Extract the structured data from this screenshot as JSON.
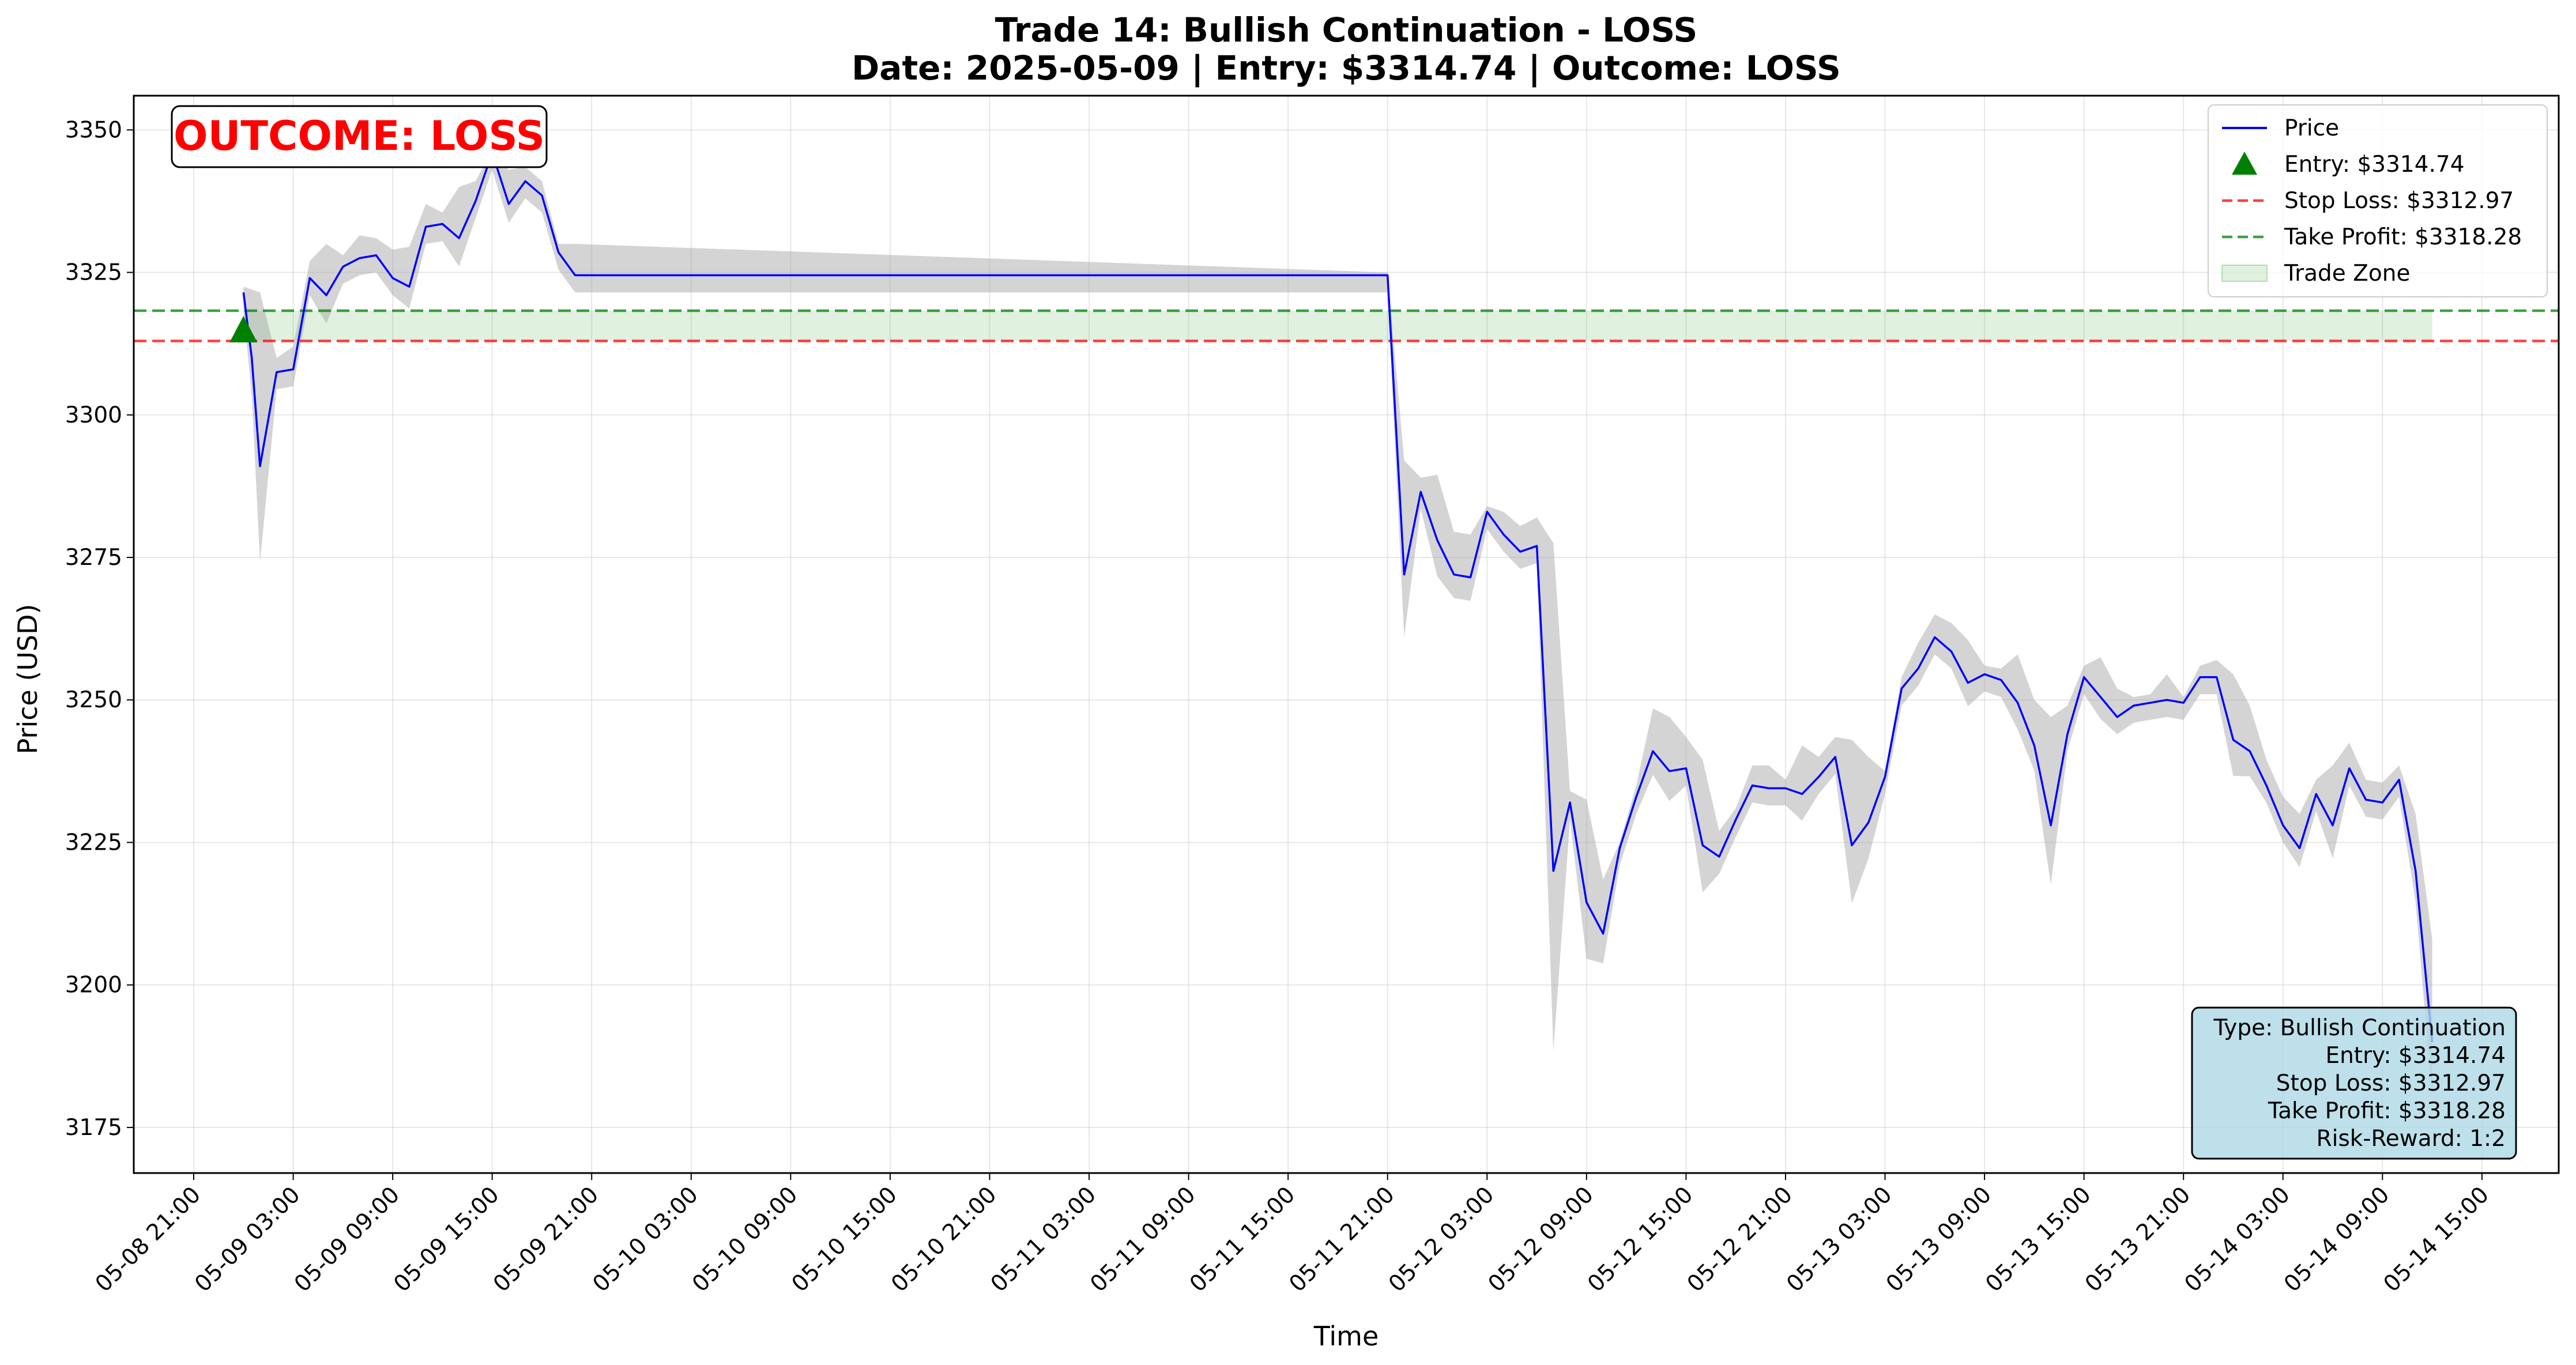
{
  "chart_data": {
    "type": "line",
    "title": "Trade 14: Bullish Continuation - LOSS",
    "subtitle": "Date: 2025-05-09 | Entry: $3314.74 | Outcome: LOSS",
    "xlabel": "Time",
    "ylabel": "Price (USD)",
    "ylim": [
      3167,
      3356
    ],
    "x_tick_labels": [
      "05-08 21:00",
      "05-09 03:00",
      "05-09 09:00",
      "05-09 15:00",
      "05-09 21:00",
      "05-10 03:00",
      "05-10 09:00",
      "05-10 15:00",
      "05-10 21:00",
      "05-11 03:00",
      "05-11 09:00",
      "05-11 15:00",
      "05-11 21:00",
      "05-12 03:00",
      "05-12 09:00",
      "05-12 15:00",
      "05-12 21:00",
      "05-13 03:00",
      "05-13 09:00",
      "05-13 15:00",
      "05-13 21:00",
      "05-14 03:00",
      "05-14 09:00",
      "05-14 15:00"
    ],
    "y_tick_labels": [
      "3175",
      "3200",
      "3225",
      "3250",
      "3275",
      "3300",
      "3325",
      "3350"
    ],
    "y_ticks": [
      3175,
      3200,
      3225,
      3250,
      3275,
      3300,
      3325,
      3350
    ],
    "grid": true,
    "legend_position": "top-right",
    "colors": {
      "price": "#0000ff",
      "entry": "#008000",
      "stop_loss": "#ff0000",
      "take_profit": "#008000",
      "trade_zone": "#2ca02c",
      "band": "#a0a0a0",
      "outcome": "#ff0000",
      "info_box": "#add8e6"
    },
    "series": [
      {
        "name": "Price",
        "x": [
          "05-09 00:00",
          "05-09 00:30",
          "05-09 01:00",
          "05-09 02:00",
          "05-09 03:00",
          "05-09 04:00",
          "05-09 05:00",
          "05-09 06:00",
          "05-09 07:00",
          "05-09 08:00",
          "05-09 09:00",
          "05-09 10:00",
          "05-09 11:00",
          "05-09 12:00",
          "05-09 13:00",
          "05-09 14:00",
          "05-09 15:00",
          "05-09 16:00",
          "05-09 17:00",
          "05-09 18:00",
          "05-09 19:00",
          "05-09 20:00",
          "05-11 21:00",
          "05-11 22:00",
          "05-11 23:00",
          "05-12 00:00",
          "05-12 01:00",
          "05-12 02:00",
          "05-12 03:00",
          "05-12 04:00",
          "05-12 05:00",
          "05-12 06:00",
          "05-12 07:00",
          "05-12 08:00",
          "05-12 09:00",
          "05-12 10:00",
          "05-12 11:00",
          "05-12 12:00",
          "05-12 13:00",
          "05-12 14:00",
          "05-12 15:00",
          "05-12 16:00",
          "05-12 17:00",
          "05-12 18:00",
          "05-12 19:00",
          "05-12 20:00",
          "05-12 21:00",
          "05-12 22:00",
          "05-12 23:00",
          "05-13 00:00",
          "05-13 01:00",
          "05-13 02:00",
          "05-13 03:00",
          "05-13 04:00",
          "05-13 05:00",
          "05-13 06:00",
          "05-13 07:00",
          "05-13 08:00",
          "05-13 09:00",
          "05-13 10:00",
          "05-13 11:00",
          "05-13 12:00",
          "05-13 13:00",
          "05-13 14:00",
          "05-13 15:00",
          "05-13 16:00",
          "05-13 17:00",
          "05-13 18:00",
          "05-13 19:00",
          "05-13 20:00",
          "05-13 21:00",
          "05-13 22:00",
          "05-13 23:00",
          "05-14 00:00",
          "05-14 01:00",
          "05-14 02:00",
          "05-14 03:00",
          "05-14 04:00",
          "05-14 05:00",
          "05-14 06:00",
          "05-14 07:00",
          "05-14 08:00",
          "05-14 09:00",
          "05-14 10:00",
          "05-14 11:00",
          "05-14 12:00"
        ],
        "values": [
          3321.5,
          3310,
          3291,
          3307.5,
          3308,
          3324,
          3321,
          3326,
          3327.5,
          3328,
          3324,
          3322.5,
          3333,
          3333.5,
          3331,
          3337.5,
          3346,
          3337,
          3341,
          3338.5,
          3328.5,
          3324.5,
          3324.5,
          3272,
          3286.5,
          3278,
          3272,
          3271.5,
          3283,
          3279,
          3276,
          3277,
          3220,
          3232,
          3214.5,
          3209,
          3224,
          3233,
          3241,
          3237.5,
          3238,
          3224.5,
          3222.5,
          3229,
          3235,
          3234.5,
          3234.5,
          3233.5,
          3236.5,
          3240,
          3224.5,
          3228.5,
          3236.5,
          3252,
          3255.5,
          3261,
          3258.5,
          3253,
          3254.5,
          3253.5,
          3249.5,
          3242,
          3228,
          3244,
          3254,
          3250.5,
          3247,
          3249,
          3249.5,
          3250,
          3249.5,
          3254,
          3254,
          3243,
          3241,
          3235,
          3228,
          3224,
          3233.5,
          3228,
          3238,
          3232.5,
          3232,
          3236,
          3220,
          3190
        ]
      }
    ],
    "band": {
      "x": [
        "05-09 00:00",
        "05-09 00:30",
        "05-09 01:00",
        "05-09 02:00",
        "05-09 03:00",
        "05-09 04:00",
        "05-09 05:00",
        "05-09 06:00",
        "05-09 07:00",
        "05-09 08:00",
        "05-09 09:00",
        "05-09 10:00",
        "05-09 11:00",
        "05-09 12:00",
        "05-09 13:00",
        "05-09 14:00",
        "05-09 15:00",
        "05-09 16:00",
        "05-09 17:00",
        "05-09 18:00",
        "05-09 19:00",
        "05-09 20:00",
        "05-11 21:00",
        "05-11 22:00",
        "05-11 23:00",
        "05-12 00:00",
        "05-12 01:00",
        "05-12 02:00",
        "05-12 03:00",
        "05-12 04:00",
        "05-12 05:00",
        "05-12 06:00",
        "05-12 07:00",
        "05-12 08:00",
        "05-12 09:00",
        "05-12 10:00",
        "05-12 11:00",
        "05-12 12:00",
        "05-12 13:00",
        "05-12 14:00",
        "05-12 15:00",
        "05-12 16:00",
        "05-12 17:00",
        "05-12 18:00",
        "05-12 19:00",
        "05-12 20:00",
        "05-12 21:00",
        "05-12 22:00",
        "05-12 23:00",
        "05-13 00:00",
        "05-13 01:00",
        "05-13 02:00",
        "05-13 03:00",
        "05-13 04:00",
        "05-13 05:00",
        "05-13 06:00",
        "05-13 07:00",
        "05-13 08:00",
        "05-13 09:00",
        "05-13 10:00",
        "05-13 11:00",
        "05-13 12:00",
        "05-13 13:00",
        "05-13 14:00",
        "05-13 15:00",
        "05-13 16:00",
        "05-13 17:00",
        "05-13 18:00",
        "05-13 19:00",
        "05-13 20:00",
        "05-13 21:00",
        "05-13 22:00",
        "05-13 23:00",
        "05-14 00:00",
        "05-14 01:00",
        "05-14 02:00",
        "05-14 03:00",
        "05-14 04:00",
        "05-14 05:00",
        "05-14 06:00",
        "05-14 07:00",
        "05-14 08:00",
        "05-14 09:00",
        "05-14 10:00",
        "05-14 11:00",
        "05-14 12:00"
      ],
      "upper": [
        3322.5,
        3322,
        3321.5,
        3310,
        3312,
        3327,
        3330,
        3328,
        3331.5,
        3331,
        3329,
        3329.5,
        3337,
        3335.5,
        3340,
        3341,
        3346.5,
        3343,
        3343.5,
        3341,
        3330,
        3330,
        3325,
        3292,
        3289,
        3289.5,
        3279.5,
        3279,
        3284,
        3283,
        3280.5,
        3282,
        3277.5,
        3234,
        3232.5,
        3218.5,
        3225,
        3235,
        3248.5,
        3247,
        3243.5,
        3239.5,
        3227,
        3231,
        3238.5,
        3238.5,
        3236,
        3242,
        3240,
        3243.5,
        3243,
        3240,
        3237.5,
        3254,
        3260,
        3265,
        3263.5,
        3260.5,
        3256,
        3255.5,
        3258,
        3250,
        3247,
        3249,
        3256,
        3257.5,
        3252,
        3250.5,
        3251,
        3254.5,
        3250.5,
        3256,
        3257,
        3254.5,
        3249,
        3239.5,
        3233,
        3230,
        3236,
        3238.5,
        3242.5,
        3236,
        3235.5,
        3238.5,
        3230,
        3208
      ]
    },
    "entry": {
      "time": "05-09 00:00",
      "price": 3314.74,
      "label": "Entry: $3314.74"
    },
    "stop_loss": {
      "price": 3312.97,
      "label": "Stop Loss: $3312.97"
    },
    "take_profit": {
      "price": 3318.28,
      "label": "Take Profit: $3318.28"
    },
    "trade_zone": {
      "from": "05-09 00:00",
      "to": "05-14 12:00",
      "label": "Trade Zone"
    },
    "outcome_badge": "OUTCOME: LOSS",
    "info_box": {
      "lines": [
        "Type: Bullish Continuation",
        "Entry: $3314.74",
        "Stop Loss: $3312.97",
        "Take Profit: $3318.28",
        "Risk-Reward: 1:2"
      ]
    },
    "legend": [
      {
        "label": "Price",
        "kind": "line",
        "color": "#0000ff"
      },
      {
        "label": "Entry: $3314.74",
        "kind": "triangle",
        "color": "#008000"
      },
      {
        "label": "Stop Loss: $3312.97",
        "kind": "dashed",
        "color": "#ff0000"
      },
      {
        "label": "Take Profit: $3318.28",
        "kind": "dashed",
        "color": "#008000"
      },
      {
        "label": "Trade Zone",
        "kind": "patch",
        "color": "#2ca02c"
      }
    ]
  }
}
